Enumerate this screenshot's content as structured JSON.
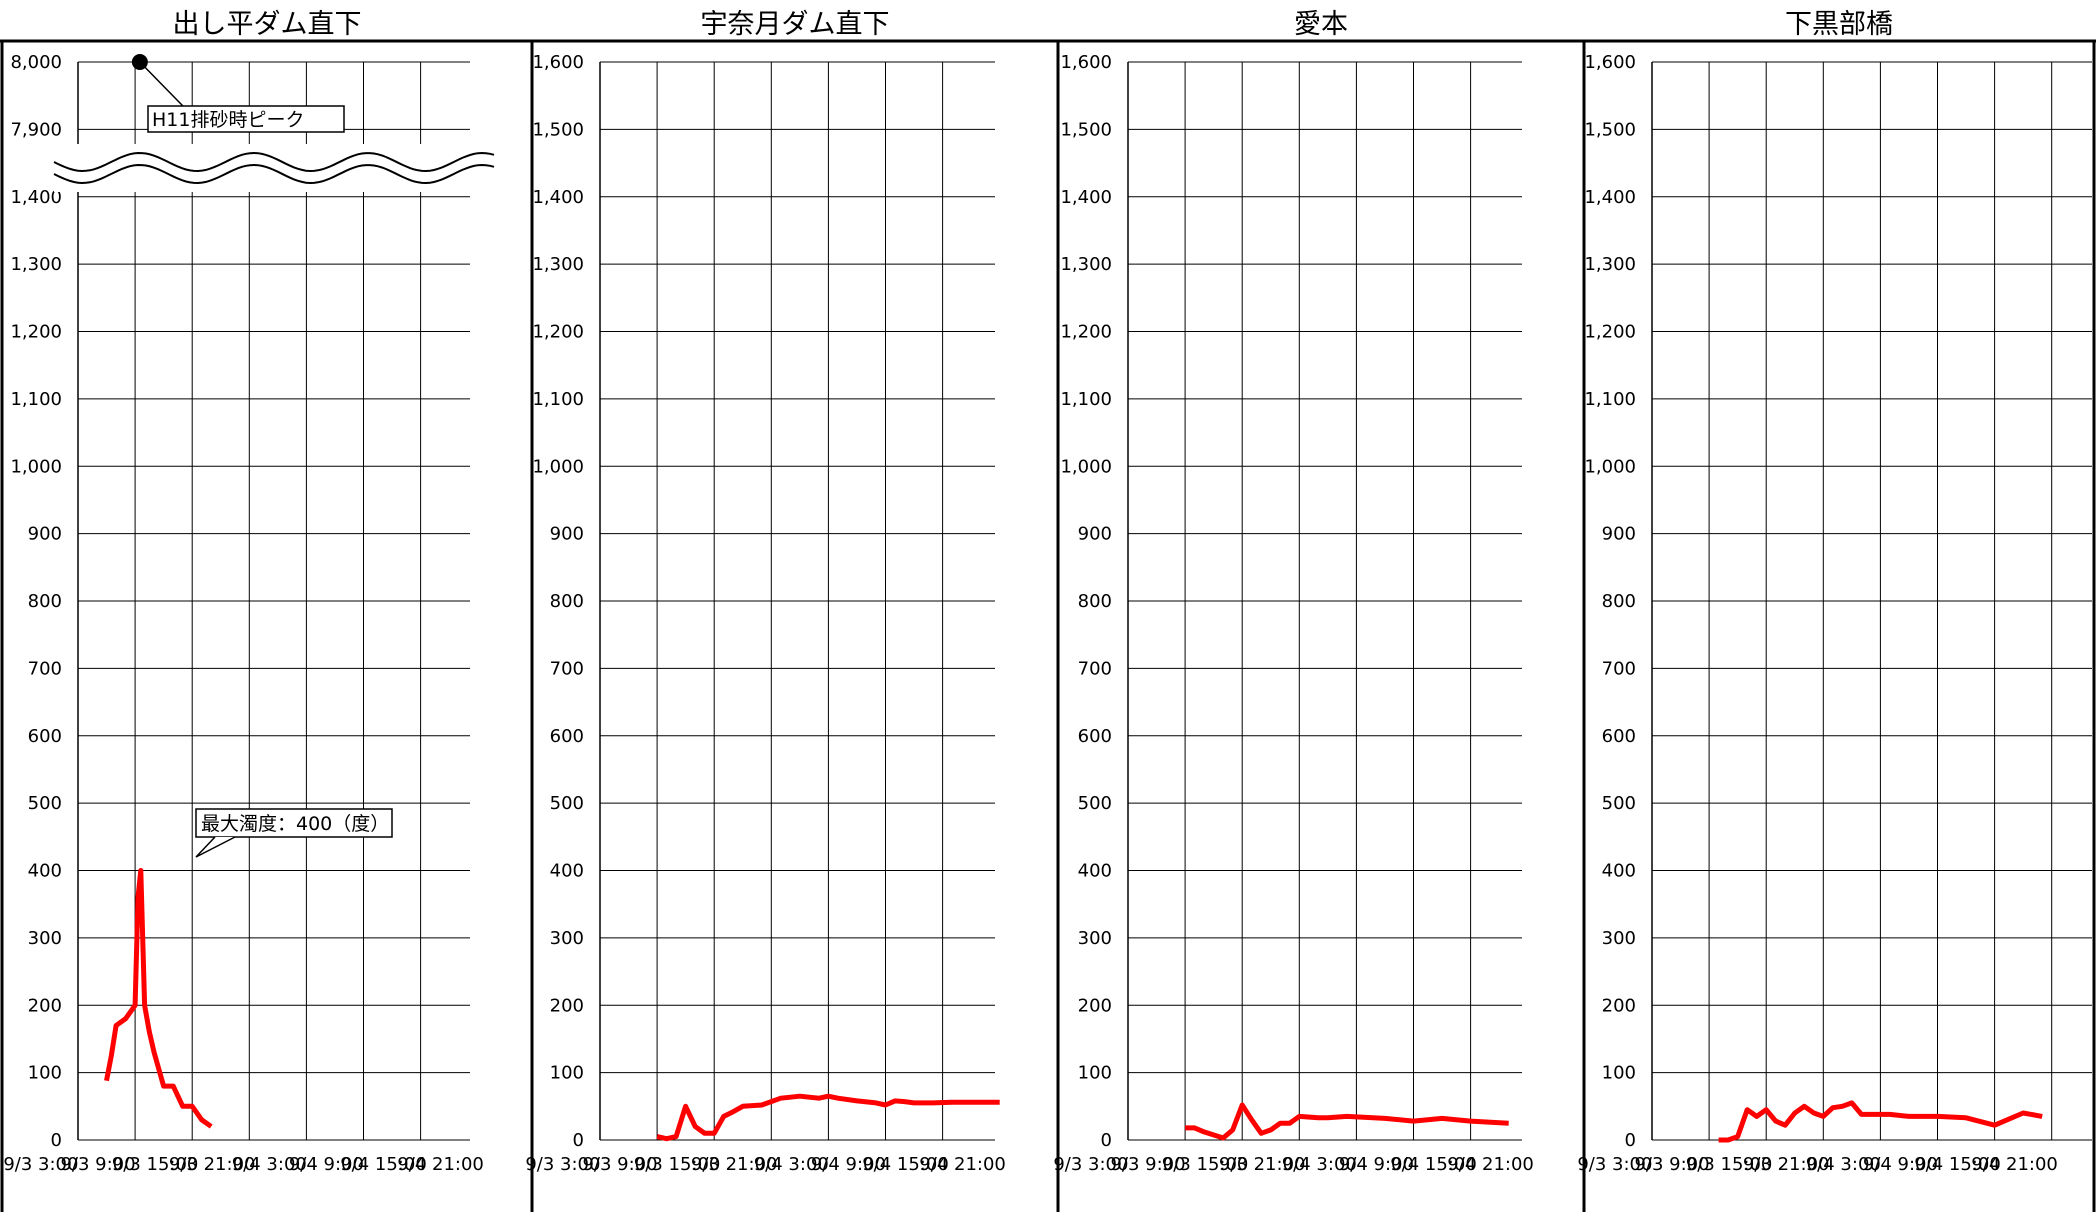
{
  "chart_data": [
    {
      "type": "line",
      "title": "出し平ダム直下",
      "ylim": [
        0,
        1600
      ],
      "y_tick_labels": [
        "0",
        "100",
        "200",
        "300",
        "400",
        "500",
        "600",
        "700",
        "800",
        "900",
        "1,000",
        "1,100",
        "1,200",
        "1,300",
        "1,400",
        "7,900",
        "8,000"
      ],
      "axis_break": "between 1,400 and 7,900",
      "x_tick_labels": [
        "9/3 3:00",
        "9/3 9:00",
        "9/3 15:00",
        "9/3 21:00",
        "9/4 3:00",
        "9/4 9:00",
        "9/4 15:00",
        "9/4 21:00"
      ],
      "grid": true,
      "series": [
        {
          "color": "#ff0000",
          "x_hours": [
            6,
            6.5,
            7,
            8,
            9,
            9.3,
            9.6,
            10,
            10.5,
            11,
            12,
            13,
            14,
            15,
            16,
            17
          ],
          "values": [
            88,
            125,
            170,
            180,
            200,
            360,
            400,
            200,
            160,
            130,
            80,
            80,
            50,
            50,
            30,
            20
          ]
        }
      ],
      "annotations": [
        {
          "label": "H11排砂時ピーク",
          "x_hours": 9.5,
          "value": 8000
        },
        {
          "label": "最大濁度：400（度）",
          "x_hours": 9.6,
          "value": 400
        }
      ]
    },
    {
      "type": "line",
      "title": "宇奈月ダム直下",
      "ylim": [
        0,
        1600
      ],
      "y_tick_labels": [
        "0",
        "100",
        "200",
        "300",
        "400",
        "500",
        "600",
        "700",
        "800",
        "900",
        "1,000",
        "1,100",
        "1,200",
        "1,300",
        "1,400",
        "1,500",
        "1,600"
      ],
      "x_tick_labels": [
        "9/3 3:00",
        "9/3 9:00",
        "9/3 15:00",
        "9/3 21:00",
        "9/4 3:00",
        "9/4 9:00",
        "9/4 15:00",
        "9/4 21:00"
      ],
      "grid": true,
      "series": [
        {
          "color": "#ff0000",
          "x_hours": [
            9,
            10,
            11,
            12,
            13,
            14,
            15,
            16,
            17,
            18,
            20,
            22,
            24,
            26,
            27,
            28,
            30,
            32,
            33,
            34,
            35,
            36,
            38,
            40,
            42,
            44,
            45
          ],
          "values": [
            5,
            2,
            5,
            50,
            20,
            10,
            10,
            35,
            42,
            50,
            52,
            62,
            65,
            62,
            65,
            62,
            58,
            55,
            52,
            58,
            57,
            55,
            55,
            56,
            56,
            56,
            56
          ]
        }
      ]
    },
    {
      "type": "line",
      "title": "愛本",
      "ylim": [
        0,
        1600
      ],
      "y_tick_labels": [
        "0",
        "100",
        "200",
        "300",
        "400",
        "500",
        "600",
        "700",
        "800",
        "900",
        "1,000",
        "1,100",
        "1,200",
        "1,300",
        "1,400",
        "1,500",
        "1,600"
      ],
      "x_tick_labels": [
        "9/3 3:00",
        "9/3 9:00",
        "9/3 15:00",
        "9/3 21:00",
        "9/4 3:00",
        "9/4 9:00",
        "9/4 15:00",
        "9/4 21:00"
      ],
      "grid": true,
      "series": [
        {
          "color": "#ff0000",
          "x_hours": [
            9,
            10,
            11,
            13,
            14,
            15,
            16,
            17,
            18,
            19,
            20,
            21,
            23,
            24,
            26,
            30,
            33,
            36,
            39,
            43
          ],
          "values": [
            18,
            18,
            12,
            3,
            15,
            52,
            30,
            10,
            15,
            25,
            25,
            35,
            33,
            33,
            35,
            32,
            28,
            32,
            28,
            25
          ]
        }
      ]
    },
    {
      "type": "line",
      "title": "下黒部橋",
      "ylim": [
        0,
        1600
      ],
      "y_tick_labels": [
        "0",
        "100",
        "200",
        "300",
        "400",
        "500",
        "600",
        "700",
        "800",
        "900",
        "1,000",
        "1,100",
        "1,200",
        "1,300",
        "1,400",
        "1,500",
        "1,600"
      ],
      "x_tick_labels": [
        "9/3 3:00",
        "9/3 9:00",
        "9/3 15:00",
        "9/3 21:00",
        "9/4 3:00",
        "9/4 9:00",
        "9/4 15:00",
        "9/4 21:00"
      ],
      "grid": true,
      "series": [
        {
          "color": "#ff0000",
          "x_hours": [
            10,
            11,
            12,
            13,
            14,
            15,
            16,
            17,
            18,
            19,
            20,
            21,
            22,
            23,
            24,
            25,
            28,
            30,
            33,
            36,
            39,
            42,
            44
          ],
          "values": [
            0,
            0,
            5,
            45,
            35,
            45,
            28,
            22,
            40,
            50,
            40,
            35,
            48,
            50,
            55,
            38,
            38,
            35,
            35,
            33,
            22,
            40,
            35
          ]
        }
      ]
    }
  ]
}
